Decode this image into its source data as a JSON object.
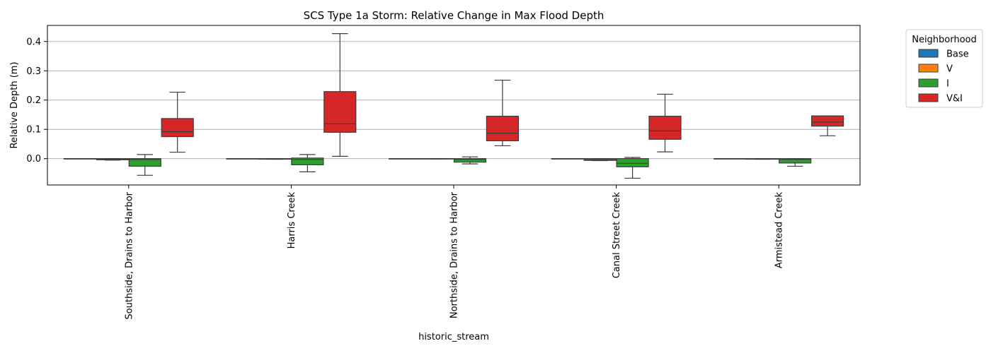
{
  "chart_data": {
    "type": "box",
    "title": "SCS Type 1a Storm: Relative Change in Max Flood Depth",
    "xlabel": "historic_stream",
    "ylabel": "Relative Depth (m)",
    "ylim": [
      -0.09,
      0.455
    ],
    "yticks": [
      0.0,
      0.1,
      0.2,
      0.3,
      0.4
    ],
    "ytick_labels": [
      "0.0",
      "0.1",
      "0.2",
      "0.3",
      "0.4"
    ],
    "grid": "horizontal",
    "legend": {
      "title": "Neighborhood",
      "placement": "outside-top-right",
      "entries": [
        "Base",
        "V",
        "I",
        "V&I"
      ]
    },
    "categories": [
      "Southside, Drains to Harbor",
      "Harris Creek",
      "Northside, Drains to Harbor",
      "Canal Street Creek",
      "Armistead Creek"
    ],
    "series": [
      {
        "name": "Base",
        "color": "#1f77b4",
        "boxes": [
          {
            "whislo": 0.0,
            "q1": 0.0,
            "med": 0.0,
            "q3": 0.0,
            "whishi": 0.0
          },
          {
            "whislo": 0.0,
            "q1": 0.0,
            "med": 0.0,
            "q3": 0.0,
            "whishi": 0.0
          },
          {
            "whislo": 0.0,
            "q1": 0.0,
            "med": 0.0,
            "q3": 0.0,
            "whishi": 0.0
          },
          {
            "whislo": 0.0,
            "q1": 0.0,
            "med": 0.0,
            "q3": 0.0,
            "whishi": 0.0
          },
          {
            "whislo": 0.0,
            "q1": 0.0,
            "med": 0.0,
            "q3": 0.0,
            "whishi": 0.0
          }
        ]
      },
      {
        "name": "V",
        "color": "#ff7f0e",
        "boxes": [
          {
            "whislo": -0.005,
            "q1": -0.004,
            "med": -0.002,
            "q3": 0.0,
            "whishi": 0.0
          },
          {
            "whislo": -0.002,
            "q1": -0.002,
            "med": -0.001,
            "q3": 0.0,
            "whishi": 0.0
          },
          {
            "whislo": -0.001,
            "q1": -0.001,
            "med": 0.0,
            "q3": 0.0,
            "whishi": 0.0
          },
          {
            "whislo": -0.007,
            "q1": -0.006,
            "med": -0.003,
            "q3": 0.0,
            "whishi": 0.0
          },
          {
            "whislo": -0.002,
            "q1": -0.002,
            "med": -0.001,
            "q3": 0.0,
            "whishi": 0.0
          }
        ]
      },
      {
        "name": "I",
        "color": "#2ca02c",
        "boxes": [
          {
            "whislo": -0.057,
            "q1": -0.026,
            "med": -0.003,
            "q3": 0.0,
            "whishi": 0.014
          },
          {
            "whislo": -0.045,
            "q1": -0.021,
            "med": -0.003,
            "q3": 0.002,
            "whishi": 0.014
          },
          {
            "whislo": -0.018,
            "q1": -0.012,
            "med": -0.003,
            "q3": 0.0,
            "whishi": 0.006
          },
          {
            "whislo": -0.067,
            "q1": -0.028,
            "med": -0.016,
            "q3": 0.0,
            "whishi": 0.004
          },
          {
            "whislo": -0.026,
            "q1": -0.015,
            "med": -0.003,
            "q3": 0.0,
            "whishi": 0.0
          }
        ]
      },
      {
        "name": "V&I",
        "color": "#d62728",
        "boxes": [
          {
            "whislo": 0.022,
            "q1": 0.075,
            "med": 0.092,
            "q3": 0.137,
            "whishi": 0.227
          },
          {
            "whislo": 0.008,
            "q1": 0.09,
            "med": 0.119,
            "q3": 0.229,
            "whishi": 0.427
          },
          {
            "whislo": 0.044,
            "q1": 0.061,
            "med": 0.087,
            "q3": 0.145,
            "whishi": 0.268
          },
          {
            "whislo": 0.023,
            "q1": 0.066,
            "med": 0.095,
            "q3": 0.145,
            "whishi": 0.22
          },
          {
            "whislo": 0.078,
            "q1": 0.111,
            "med": 0.125,
            "q3": 0.146,
            "whishi": 0.146
          }
        ]
      }
    ]
  }
}
